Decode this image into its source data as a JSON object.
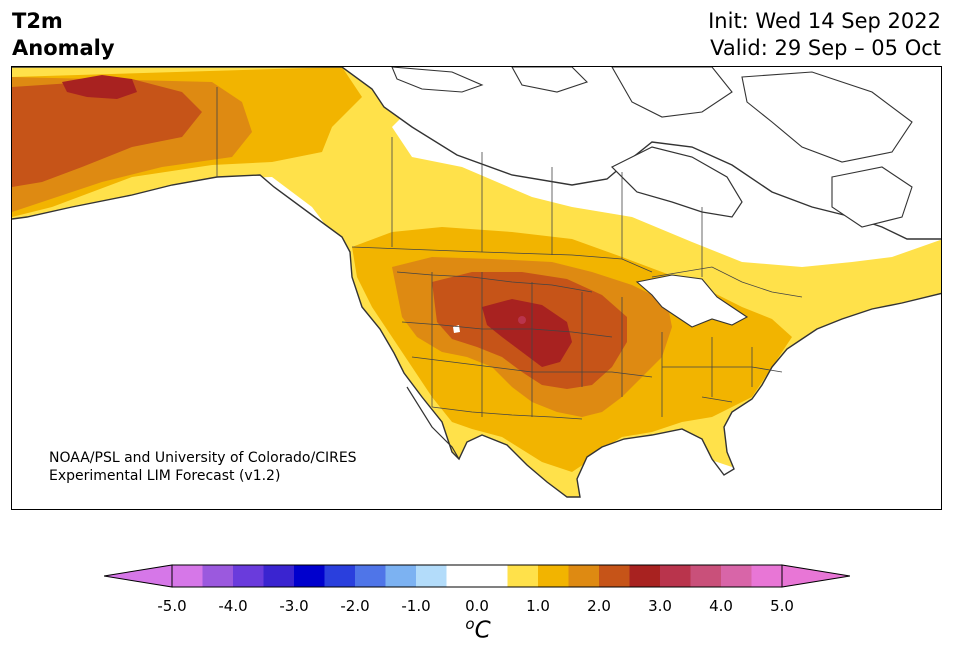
{
  "title": {
    "variable_line1": "T2m",
    "variable_line2": "Anomaly",
    "init": "Init: Wed 14 Sep 2022",
    "valid": "Valid: 29 Sep – 05 Oct"
  },
  "credit": {
    "line1": "NOAA/PSL and University of Colorado/CIRES",
    "line2": "Experimental LIM Forecast (v1.2)"
  },
  "colorbar": {
    "unit_superscript": "o",
    "unit_main": "C",
    "min": -5.0,
    "max": 5.0,
    "step": 0.5,
    "extend": "both",
    "colors": [
      "#d677e8",
      "#9b59de",
      "#6a3bdc",
      "#3a24d0",
      "#0000cd",
      "#2a3fdd",
      "#4f75e8",
      "#7cb2f2",
      "#b3dcfa",
      "#ffffff",
      "#ffffff",
      "#ffe14a",
      "#f2b400",
      "#de8a12",
      "#c65418",
      "#a82220",
      "#b9344c",
      "#c9507a",
      "#d865a8",
      "#e876d6"
    ],
    "ticks": [
      "-5.0",
      "-4.0",
      "-3.0",
      "-2.0",
      "-1.0",
      "0.0",
      "1.0",
      "2.0",
      "3.0",
      "4.0",
      "5.0"
    ]
  },
  "map": {
    "region": "North America",
    "field": "2 m temperature anomaly",
    "features": [
      "coastlines",
      "country borders",
      "state and province borders"
    ]
  }
}
